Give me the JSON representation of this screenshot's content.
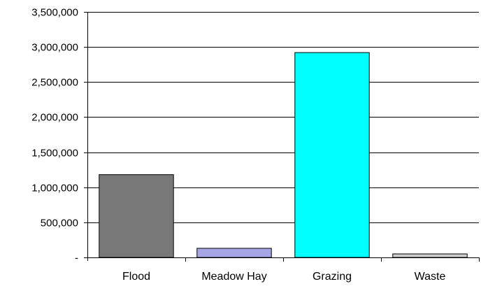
{
  "chart_data": {
    "type": "bar",
    "title": "",
    "xlabel": "",
    "ylabel": "",
    "categories": [
      "Flood",
      "Meadow Hay",
      "Grazing",
      "Waste"
    ],
    "values": [
      1180000,
      130000,
      2920000,
      50000
    ],
    "bar_colors": [
      "#787878",
      "#a6a6e6",
      "#00ffff",
      "#cfcfcf"
    ],
    "ylim": [
      0,
      3500000
    ],
    "y_ticks": [
      0,
      500000,
      1000000,
      1500000,
      2000000,
      2500000,
      3000000,
      3500000
    ],
    "y_tick_labels": [
      "-",
      "500,000",
      "1,000,000",
      "1,500,000",
      "2,000,000",
      "2,500,000",
      "3,000,000",
      "3,500,000"
    ],
    "grid": "horizontal",
    "legend": "none"
  }
}
